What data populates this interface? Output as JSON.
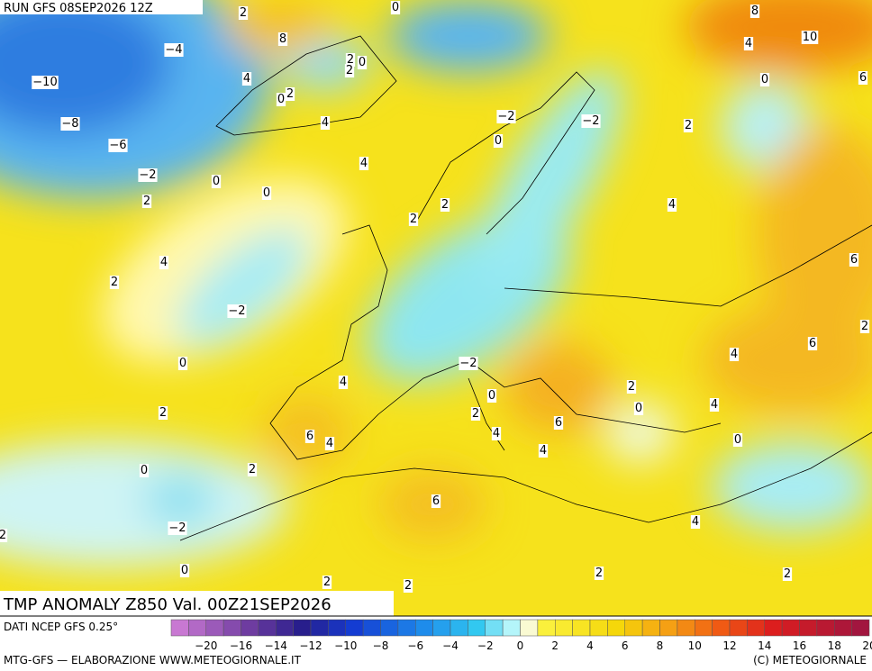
{
  "header": {
    "run": "RUN GFS 08SEP2026 12Z",
    "title": "TMP ANOMALY Z850 Val. 00Z21SEP2026"
  },
  "footer": {
    "source": "DATI NCEP GFS 0.25°",
    "credit": "MTG-GFS — ELABORAZIONE WWW.METEOGIORNALE.IT",
    "copyright": "(C) METEOGIORNALE"
  },
  "colorbar": {
    "labels": [
      "−20",
      "−16",
      "−14",
      "−12",
      "−10",
      "−8",
      "−6",
      "−4",
      "−2",
      "0",
      "2",
      "4",
      "6",
      "8",
      "10",
      "12",
      "14",
      "16",
      "18",
      "20"
    ]
  },
  "map_labels": [
    "−4",
    "−10",
    "−8",
    "−6",
    "−2",
    "0",
    "0",
    "2",
    "4",
    "2",
    "−2",
    "0",
    "2",
    "0",
    "−2",
    "0",
    "2",
    "2",
    "4",
    "8",
    "2",
    "0",
    "2",
    "0",
    "2",
    "4",
    "4",
    "2",
    "2",
    "0",
    "−2",
    "−2",
    "2",
    "0",
    "4",
    "8",
    "10",
    "6",
    "4",
    "6",
    "2",
    "6",
    "4",
    "4",
    "0",
    "2",
    "0",
    "4",
    "2",
    "2",
    "4",
    "6",
    "4",
    "−2",
    "0",
    "2",
    "4",
    "6",
    "4",
    "6",
    "2",
    "2",
    "2",
    "0"
  ]
}
